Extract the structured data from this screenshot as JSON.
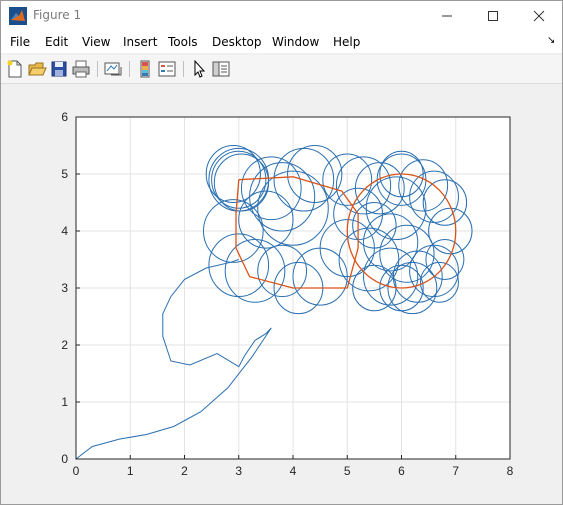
{
  "window": {
    "title": "Figure 1"
  },
  "menu": [
    "File",
    "Edit",
    "View",
    "Insert",
    "Tools",
    "Desktop",
    "Window",
    "Help"
  ],
  "menu_arrow": "↘",
  "toolbar": [
    "new-figure-icon",
    "open-file-icon",
    "save-icon",
    "print-icon",
    "link-plot-icon",
    "insert-colorbar-icon",
    "insert-legend-icon",
    "pointer-icon",
    "property-inspector-icon"
  ],
  "chart_data": {
    "type": "line",
    "xlim": [
      0,
      8
    ],
    "ylim": [
      0,
      6
    ],
    "xticks": [
      "0",
      "1",
      "2",
      "3",
      "4",
      "5",
      "6",
      "7",
      "8"
    ],
    "yticks": [
      "0",
      "1",
      "2",
      "3",
      "4",
      "5",
      "6"
    ],
    "grid": true,
    "colors": {
      "trajectory": "#2a6fb0",
      "circles": "#2a6fb0",
      "path": "#d95319"
    },
    "trajectory": [
      [
        0,
        0
      ],
      [
        0.3,
        0.22
      ],
      [
        0.8,
        0.35
      ],
      [
        1.3,
        0.43
      ],
      [
        1.8,
        0.57
      ],
      [
        2.3,
        0.83
      ],
      [
        2.8,
        1.25
      ],
      [
        3.25,
        1.8
      ],
      [
        3.6,
        2.3
      ],
      [
        3.5,
        2.2
      ],
      [
        3.3,
        2.08
      ],
      [
        3.1,
        1.8
      ],
      [
        3.0,
        1.62
      ],
      [
        2.6,
        1.85
      ],
      [
        2.1,
        1.65
      ],
      [
        1.75,
        1.72
      ],
      [
        1.6,
        2.15
      ],
      [
        1.6,
        2.55
      ],
      [
        1.75,
        2.85
      ],
      [
        2.0,
        3.15
      ],
      [
        2.4,
        3.35
      ],
      [
        2.85,
        3.45
      ],
      [
        3.0,
        3.5
      ]
    ],
    "path": {
      "circle": {
        "cx": 6.0,
        "cy": 4.0,
        "r": 1.0
      },
      "loop": [
        [
          3.0,
          4.9
        ],
        [
          4.0,
          4.95
        ],
        [
          4.9,
          4.7
        ],
        [
          5.2,
          4.3
        ],
        [
          5.2,
          3.7
        ],
        [
          5.0,
          3.0
        ],
        [
          4.0,
          3.0
        ],
        [
          3.2,
          3.2
        ],
        [
          2.95,
          3.7
        ],
        [
          2.95,
          4.3
        ],
        [
          3.0,
          4.9
        ]
      ]
    },
    "circles": [
      [
        3.0,
        4.9,
        0.55
      ],
      [
        3.0,
        4.9,
        0.5
      ],
      [
        2.9,
        5.0,
        0.5
      ],
      [
        3.05,
        4.85,
        0.5
      ],
      [
        3.6,
        4.75,
        0.55
      ],
      [
        4.0,
        4.4,
        0.65
      ],
      [
        4.4,
        5.0,
        0.5
      ],
      [
        4.2,
        4.9,
        0.55
      ],
      [
        5.0,
        4.9,
        0.45
      ],
      [
        5.3,
        4.8,
        0.5
      ],
      [
        5.6,
        4.75,
        0.45
      ],
      [
        6.0,
        5.0,
        0.4
      ],
      [
        6.4,
        4.8,
        0.45
      ],
      [
        6.8,
        4.5,
        0.4
      ],
      [
        6.9,
        4.0,
        0.4
      ],
      [
        6.8,
        3.5,
        0.35
      ],
      [
        6.6,
        3.3,
        0.45
      ],
      [
        6.2,
        3.0,
        0.45
      ],
      [
        5.8,
        3.2,
        0.5
      ],
      [
        5.4,
        3.5,
        0.55
      ],
      [
        5.0,
        3.7,
        0.5
      ],
      [
        5.2,
        4.3,
        0.45
      ],
      [
        5.5,
        4.1,
        0.4
      ],
      [
        5.8,
        3.8,
        0.5
      ],
      [
        6.1,
        3.6,
        0.5
      ],
      [
        2.9,
        4.0,
        0.55
      ],
      [
        3.0,
        3.4,
        0.55
      ],
      [
        3.3,
        3.3,
        0.55
      ],
      [
        3.8,
        3.3,
        0.45
      ],
      [
        4.1,
        3.0,
        0.45
      ],
      [
        4.5,
        3.2,
        0.5
      ],
      [
        5.5,
        3.0,
        0.4
      ],
      [
        6.0,
        3.0,
        0.4
      ],
      [
        6.3,
        3.2,
        0.45
      ],
      [
        3.5,
        4.2,
        0.5
      ],
      [
        3.8,
        4.6,
        0.6
      ],
      [
        5.9,
        4.4,
        0.55
      ],
      [
        6.6,
        4.6,
        0.45
      ],
      [
        6.0,
        4.9,
        0.45
      ],
      [
        6.7,
        3.1,
        0.35
      ]
    ]
  }
}
